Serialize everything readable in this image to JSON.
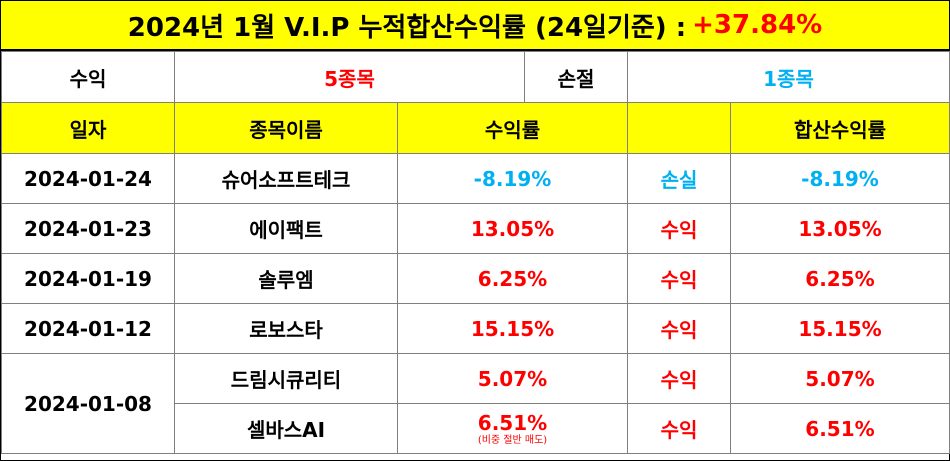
{
  "title": {
    "text": "2024년 1월 V.I.P 누적합산수익률 (24일기준) :",
    "total_return": "+37.84%"
  },
  "summary": {
    "profit_label": "수익",
    "profit_value": "5종목",
    "loss_label": "손절",
    "loss_value": "1종목"
  },
  "headers": {
    "date": "일자",
    "stock_name": "종목이름",
    "return": "수익률",
    "result": "",
    "cumulative": "합산수익률"
  },
  "rows": [
    {
      "date": "2024-01-24",
      "stock": "슈어소프트테크",
      "return": "-8.19%",
      "result": "손실",
      "cumulative": "-8.19%"
    },
    {
      "date": "2024-01-23",
      "stock": "에이팩트",
      "return": "13.05%",
      "result": "수익",
      "cumulative": "13.05%"
    },
    {
      "date": "2024-01-19",
      "stock": "솔루엠",
      "return": "6.25%",
      "result": "수익",
      "cumulative": "6.25%"
    },
    {
      "date": "2024-01-12",
      "stock": "로보스타",
      "return": "15.15%",
      "result": "수익",
      "cumulative": "15.15%"
    },
    {
      "date": "2024-01-08",
      "stock": "드림시큐리티",
      "return": "5.07%",
      "result": "수익",
      "cumulative": "5.07%"
    },
    {
      "date": "2024-01-08",
      "stock": "셀바스AI",
      "return": "6.51%",
      "note": "(비중 절반 매도)",
      "result": "수익",
      "cumulative": "6.51%"
    }
  ],
  "colors": {
    "header_bg": "#ffff00",
    "profit": "#ff0000",
    "loss": "#00b0f0"
  }
}
